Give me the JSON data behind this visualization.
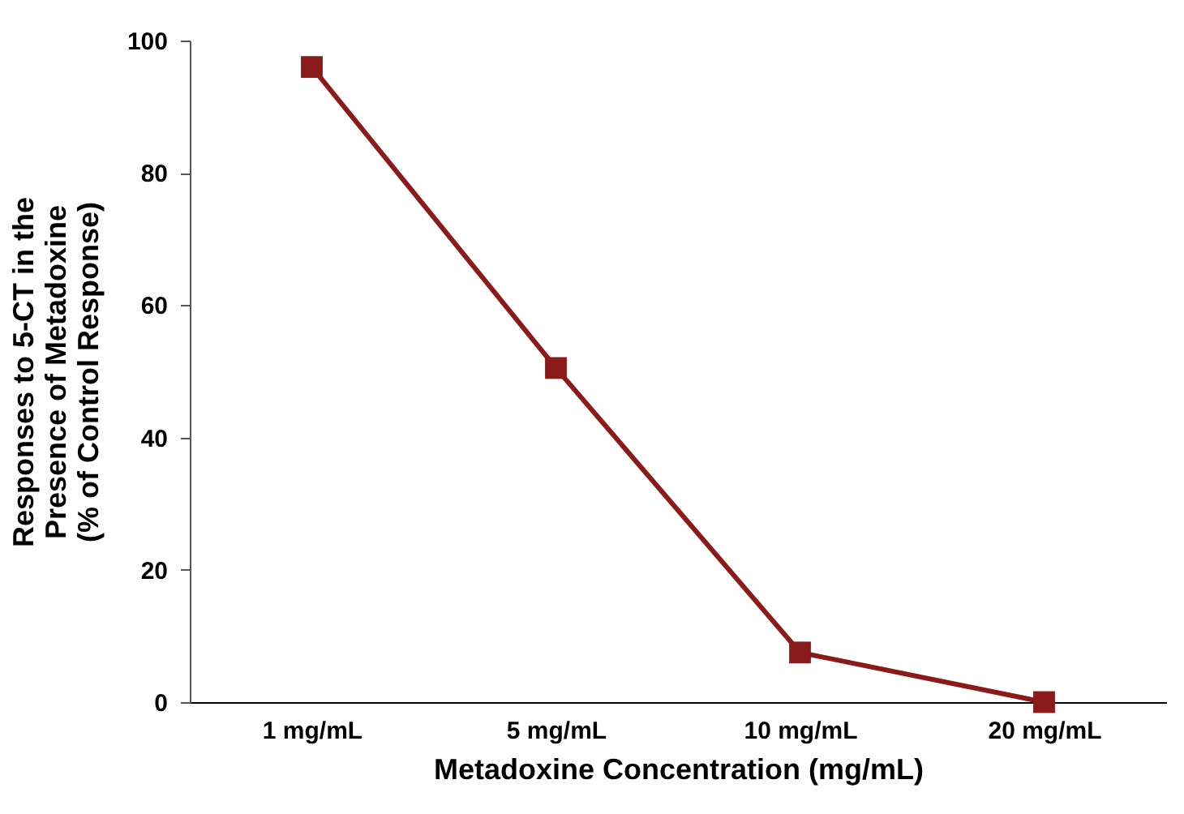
{
  "chart_data": {
    "type": "line",
    "xlabel": "Metadoxine Concentration (mg/mL)",
    "ylabel": "Responses to 5-CT in the\nPresence of Metadoxine\n(% of Control Response)",
    "categories": [
      "1 mg/mL",
      "5 mg/mL",
      "10 mg/mL",
      "20 mg/mL"
    ],
    "series": [
      {
        "color": "#8b1a1a",
        "values": [
          96,
          50.5,
          7.5,
          0
        ]
      }
    ],
    "ylim": [
      0,
      100
    ],
    "yticks": [
      0,
      20,
      40,
      60,
      80,
      100
    ],
    "grid": false,
    "legend": false,
    "marker": "square",
    "line_style": "solid"
  }
}
